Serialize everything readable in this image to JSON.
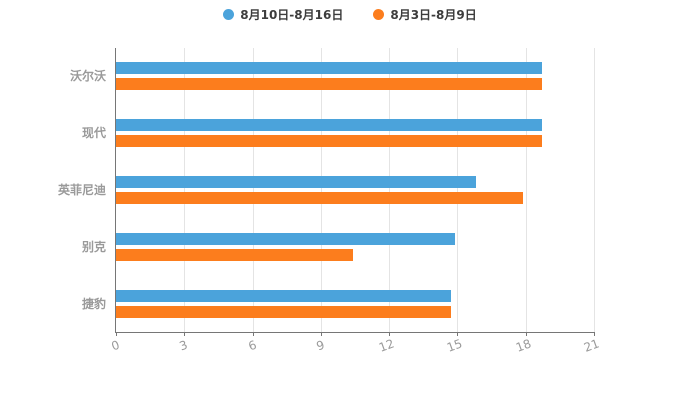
{
  "chart_data": {
    "type": "bar",
    "orientation": "horizontal",
    "title": "",
    "categories": [
      "沃尔沃",
      "现代",
      "英菲尼迪",
      "别克",
      "捷豹"
    ],
    "series": [
      {
        "name": "8月10日-8月16日",
        "color": "#4BA3DB",
        "values": [
          18.7,
          18.7,
          15.8,
          14.9,
          14.7
        ]
      },
      {
        "name": "8月3日-8月9日",
        "color": "#FC7D1D",
        "values": [
          18.7,
          18.7,
          17.9,
          10.4,
          14.7
        ]
      }
    ],
    "xlim": [
      0,
      21
    ],
    "x_ticks": [
      "0",
      "3",
      "6",
      "9",
      "12",
      "15",
      "18",
      "21"
    ],
    "legend_position": "top-center",
    "grid": true,
    "gridline_color": "#e4e4e4",
    "axis_line_color": "#767676",
    "axis_label_color": "#9a9a9a"
  }
}
